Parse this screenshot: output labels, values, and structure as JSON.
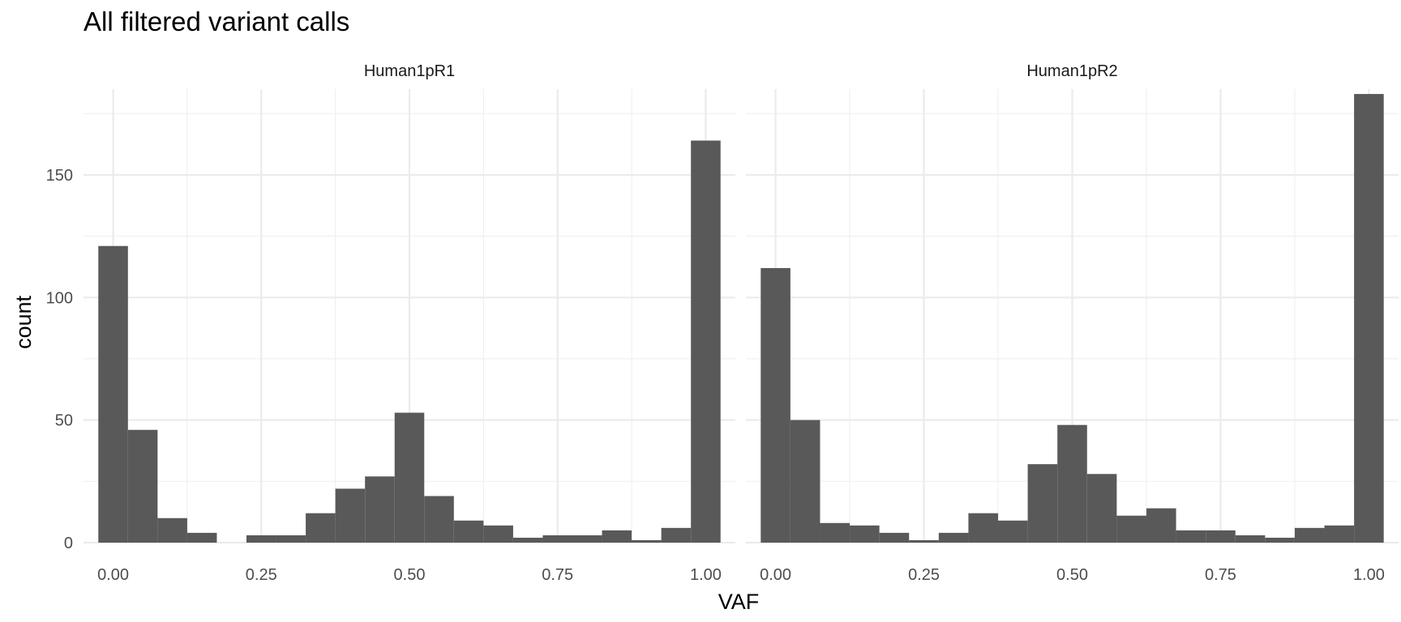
{
  "chart_data": {
    "type": "bar",
    "title": "All filtered variant calls",
    "xlabel": "VAF",
    "ylabel": "count",
    "xlim": [
      -0.05,
      1.05
    ],
    "ylim": [
      0,
      185
    ],
    "x_ticks": [
      0,
      0.25,
      0.5,
      0.75,
      1
    ],
    "x_tick_labels": [
      "0.00",
      "0.25",
      "0.50",
      "0.75",
      "1.00"
    ],
    "y_ticks": [
      0,
      50,
      100,
      150
    ],
    "y_tick_labels": [
      "0",
      "50",
      "100",
      "150"
    ],
    "grid": true,
    "bar_color": "#595959",
    "bin_width": 0.05,
    "bin_centers": [
      0.0,
      0.05,
      0.1,
      0.15,
      0.2,
      0.25,
      0.3,
      0.35,
      0.4,
      0.45,
      0.5,
      0.55,
      0.6,
      0.65,
      0.7,
      0.75,
      0.8,
      0.85,
      0.9,
      0.95,
      1.0
    ],
    "series": [
      {
        "name": "Human1pR1",
        "values": [
          121,
          46,
          10,
          4,
          0,
          3,
          3,
          12,
          22,
          27,
          53,
          19,
          9,
          7,
          2,
          3,
          3,
          5,
          1,
          6,
          164
        ]
      },
      {
        "name": "Human1pR2",
        "values": [
          112,
          50,
          8,
          7,
          4,
          1,
          4,
          12,
          9,
          32,
          48,
          28,
          11,
          14,
          5,
          5,
          3,
          2,
          6,
          7,
          183
        ]
      }
    ]
  }
}
